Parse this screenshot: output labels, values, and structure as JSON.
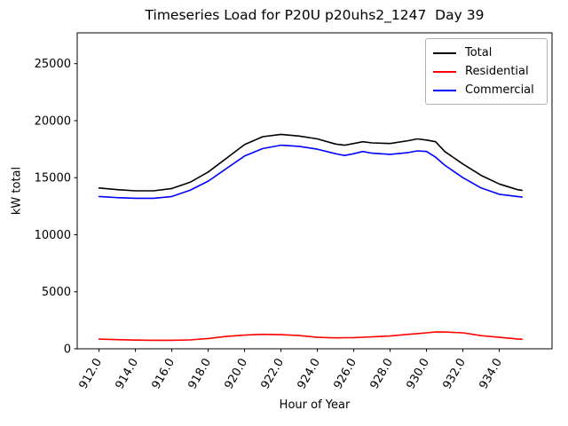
{
  "figure": {
    "background": "#ffffff",
    "axes_edge_color": "#000000",
    "legend_border_color": "#b0b0b0"
  },
  "chart_data": {
    "type": "line",
    "title": "Timeseries Load for P20U p20uhs2_1247  Day 39",
    "xlabel": "Hour of Year",
    "ylabel": "kW total",
    "xlim": [
      910.8,
      936.9
    ],
    "ylim": [
      0,
      27700
    ],
    "grid": false,
    "legend_position": "upper right",
    "xticks": [
      912,
      914,
      916,
      918,
      920,
      922,
      924,
      926,
      928,
      930,
      932,
      934
    ],
    "xtick_labels": [
      "912.0",
      "914.0",
      "916.0",
      "918.0",
      "920.0",
      "922.0",
      "924.0",
      "926.0",
      "928.0",
      "930.0",
      "932.0",
      "934.0"
    ],
    "xtick_rotation_deg": 60,
    "yticks": [
      0,
      5000,
      10000,
      15000,
      20000,
      25000
    ],
    "ytick_labels": [
      "0",
      "5000",
      "10000",
      "15000",
      "20000",
      "25000"
    ],
    "x": [
      912,
      913,
      914,
      915,
      916,
      917,
      918,
      919,
      920,
      921,
      922,
      923,
      924,
      925,
      925.5,
      926,
      926.5,
      927,
      928,
      929,
      929.5,
      930,
      930.5,
      931,
      932,
      933,
      934,
      935,
      935.25
    ],
    "series": [
      {
        "name": "Total",
        "color": "#000000",
        "values": [
          14100,
          13950,
          13850,
          13850,
          14050,
          14600,
          15500,
          16700,
          17900,
          18600,
          18800,
          18650,
          18400,
          17950,
          17850,
          18000,
          18150,
          18050,
          18000,
          18250,
          18400,
          18300,
          18150,
          17300,
          16200,
          15200,
          14450,
          13950,
          13900
        ]
      },
      {
        "name": "Residential",
        "color": "#ff0000",
        "values": [
          850,
          800,
          760,
          750,
          750,
          780,
          900,
          1080,
          1200,
          1270,
          1240,
          1160,
          1000,
          960,
          970,
          980,
          1010,
          1040,
          1120,
          1270,
          1330,
          1400,
          1470,
          1470,
          1400,
          1150,
          1000,
          860,
          840
        ]
      },
      {
        "name": "Commercial",
        "color": "#0000ff",
        "values": [
          13350,
          13250,
          13200,
          13200,
          13350,
          13900,
          14700,
          15800,
          16900,
          17550,
          17850,
          17750,
          17500,
          17100,
          16950,
          17100,
          17300,
          17150,
          17050,
          17200,
          17350,
          17300,
          16800,
          16100,
          15000,
          14100,
          13550,
          13350,
          13300
        ]
      }
    ]
  }
}
